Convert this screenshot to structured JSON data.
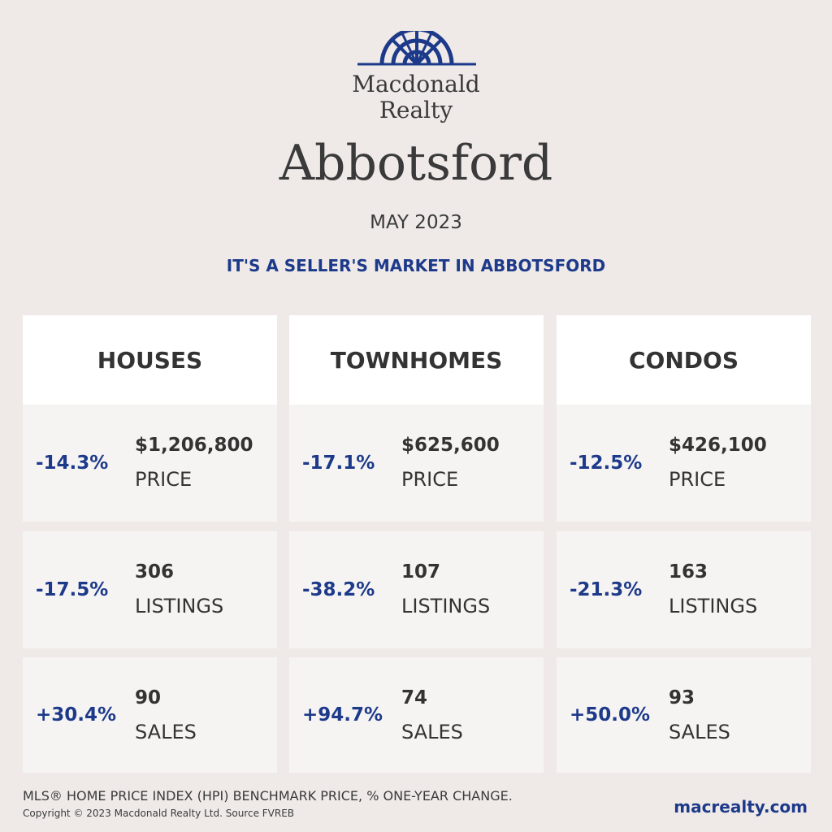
{
  "brand": {
    "line1": "Macdonald",
    "line2": "Realty",
    "accent_color": "#1d3a8a",
    "logo_icon": "sunburst-logo-icon"
  },
  "city": "Abbotsford",
  "period": "MAY 2023",
  "headline": "IT'S A SELLER'S MARKET IN ABBOTSFORD",
  "categories": [
    {
      "title": "HOUSES",
      "stats": [
        {
          "change": "-14.3%",
          "value": "$1,206,800",
          "label": "PRICE"
        },
        {
          "change": "-17.5%",
          "value": "306",
          "label": "LISTINGS"
        },
        {
          "change": "+30.4%",
          "value": "90",
          "label": "SALES"
        }
      ]
    },
    {
      "title": "TOWNHOMES",
      "stats": [
        {
          "change": "-17.1%",
          "value": "$625,600",
          "label": "PRICE"
        },
        {
          "change": "-38.2%",
          "value": "107",
          "label": "LISTINGS"
        },
        {
          "change": "+94.7%",
          "value": "74",
          "label": "SALES"
        }
      ]
    },
    {
      "title": "CONDOS",
      "stats": [
        {
          "change": "-12.5%",
          "value": "$426,100",
          "label": "PRICE"
        },
        {
          "change": "-21.3%",
          "value": "163",
          "label": "LISTINGS"
        },
        {
          "change": "+50.0%",
          "value": "93",
          "label": "SALES"
        }
      ]
    }
  ],
  "footer": {
    "note": "MLS® HOME PRICE INDEX (HPI) BENCHMARK PRICE, % ONE-YEAR CHANGE.",
    "copyright": "Copyright © 2023 Macdonald Realty Ltd. Source FVREB",
    "website": "macrealty.com"
  }
}
